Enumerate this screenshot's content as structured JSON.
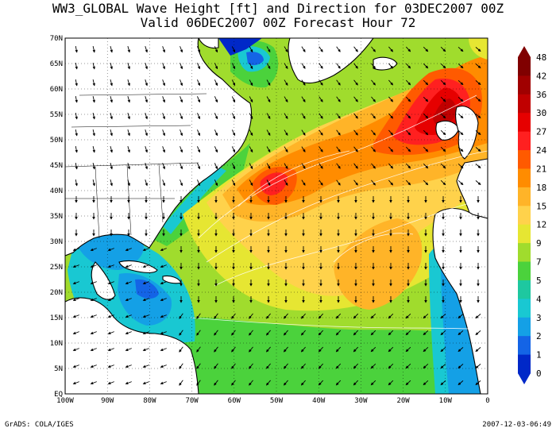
{
  "title_line1": "WW3_GLOBAL Wave Height [ft] and Direction for 03DEC2007 00Z",
  "title_line2": "Valid 06DEC2007 00Z      Forecast Hour 72",
  "lat_labels": [
    "70N",
    "65N",
    "60N",
    "55N",
    "50N",
    "45N",
    "40N",
    "35N",
    "30N",
    "25N",
    "20N",
    "15N",
    "10N",
    "5N",
    "EQ"
  ],
  "lon_labels": [
    "100W",
    "90W",
    "80W",
    "70W",
    "60W",
    "50W",
    "40W",
    "30W",
    "20W",
    "10W",
    "0"
  ],
  "colorbar": {
    "labels": [
      "48",
      "42",
      "36",
      "30",
      "27",
      "24",
      "21",
      "18",
      "15",
      "12",
      "9",
      "7",
      "5",
      "4",
      "3",
      "2",
      "1",
      "0"
    ],
    "colors": [
      "#800000",
      "#a00000",
      "#c00000",
      "#e60000",
      "#ff2020",
      "#ff5a00",
      "#ff8c00",
      "#ffb428",
      "#ffd24b",
      "#e6e632",
      "#a0dc2d",
      "#4bd23c",
      "#1ec8a0",
      "#19c8d2",
      "#14a0e6",
      "#1464e6",
      "#0028c8"
    ]
  },
  "footer_left": "GrADS: COLA/IGES",
  "footer_right": "2007-12-03-06:49"
}
